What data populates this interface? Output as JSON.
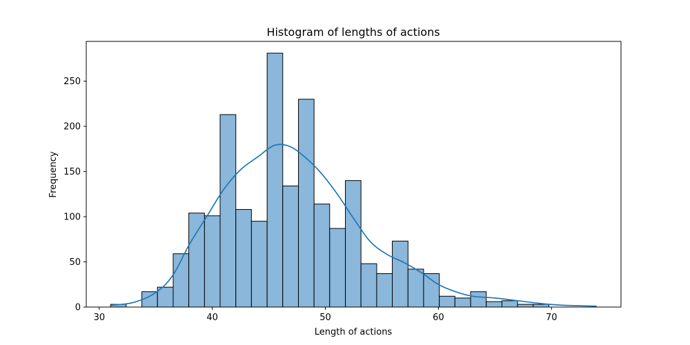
{
  "chart_data": {
    "type": "bar",
    "title": "Histogram of lengths of actions",
    "xlabel": "Length of actions",
    "ylabel": "Frequency",
    "xlim": [
      28.85,
      76.15
    ],
    "ylim": [
      0,
      294
    ],
    "xticks": [
      30,
      40,
      50,
      60,
      70
    ],
    "yticks": [
      0,
      50,
      100,
      150,
      200,
      250
    ],
    "grid": false,
    "bar_color": "#8ab7da",
    "edge_color": "#000000",
    "kde_color": "#1f77b4",
    "bin_edges": [
      31.0,
      32.38,
      33.77,
      35.15,
      36.54,
      37.92,
      39.31,
      40.69,
      42.08,
      43.46,
      44.85,
      46.23,
      47.62,
      49.0,
      50.38,
      51.77,
      53.15,
      54.54,
      55.92,
      57.31,
      58.69,
      60.08,
      61.46,
      62.85,
      64.23,
      65.62,
      67.0,
      68.38,
      69.77,
      71.15,
      72.54,
      73.92
    ],
    "values": [
      3,
      0,
      17,
      22,
      59,
      104,
      101,
      213,
      108,
      95,
      281,
      134,
      230,
      114,
      87,
      140,
      48,
      37,
      73,
      42,
      37,
      12,
      10,
      17,
      6,
      7,
      3,
      3,
      0,
      0,
      0
    ],
    "kde": {
      "x": [
        31,
        33,
        35,
        36.5,
        38,
        39.5,
        41,
        42.5,
        44,
        45.5,
        46.8,
        48,
        49.5,
        51,
        52.5,
        54,
        55.5,
        57,
        58.5,
        60,
        61.5,
        63,
        65,
        67,
        69,
        71,
        74
      ],
      "y": [
        2,
        5,
        16,
        35,
        70,
        100,
        130,
        152,
        166,
        179,
        178,
        168,
        150,
        126,
        98,
        72,
        58,
        49,
        38,
        25,
        17,
        12,
        10,
        7,
        4,
        2,
        1
      ]
    }
  }
}
